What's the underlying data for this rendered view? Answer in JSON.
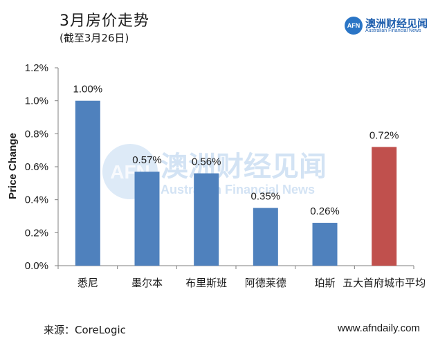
{
  "header": {
    "title": "3月房价走势",
    "subtitle": "(截至3月26日)"
  },
  "logo": {
    "badge": "AFN",
    "name_cn": "澳洲财经见闻",
    "name_en": "Australian Financial News"
  },
  "watermark": {
    "badge": "AFN",
    "name_cn": "澳洲财经见闻",
    "name_en": "Australian Financial News"
  },
  "footer": {
    "source": "来源：CoreLogic",
    "site": "www.afndaily.com"
  },
  "chart_data": {
    "type": "bar",
    "title": "3月房价走势",
    "subtitle": "(截至3月26日)",
    "xlabel": "",
    "ylabel": "Price Change",
    "ylim": [
      0,
      0.012
    ],
    "yticks": [
      0,
      0.002,
      0.004,
      0.006,
      0.008,
      0.01,
      0.012
    ],
    "ytick_labels": [
      "0.0%",
      "0.2%",
      "0.4%",
      "0.6%",
      "0.8%",
      "1.0%",
      "1.2%"
    ],
    "categories": [
      "悉尼",
      "墨尔本",
      "布里斯班",
      "阿德莱德",
      "珀斯",
      "五大首府城市平均"
    ],
    "values": [
      0.01,
      0.0057,
      0.0056,
      0.0035,
      0.0026,
      0.0072
    ],
    "data_labels": [
      "1.00%",
      "0.57%",
      "0.56%",
      "0.35%",
      "0.26%",
      "0.72%"
    ],
    "bar_colors": [
      "#4f81bd",
      "#4f81bd",
      "#4f81bd",
      "#4f81bd",
      "#4f81bd",
      "#c0504d"
    ],
    "grid": false,
    "legend": "none"
  }
}
